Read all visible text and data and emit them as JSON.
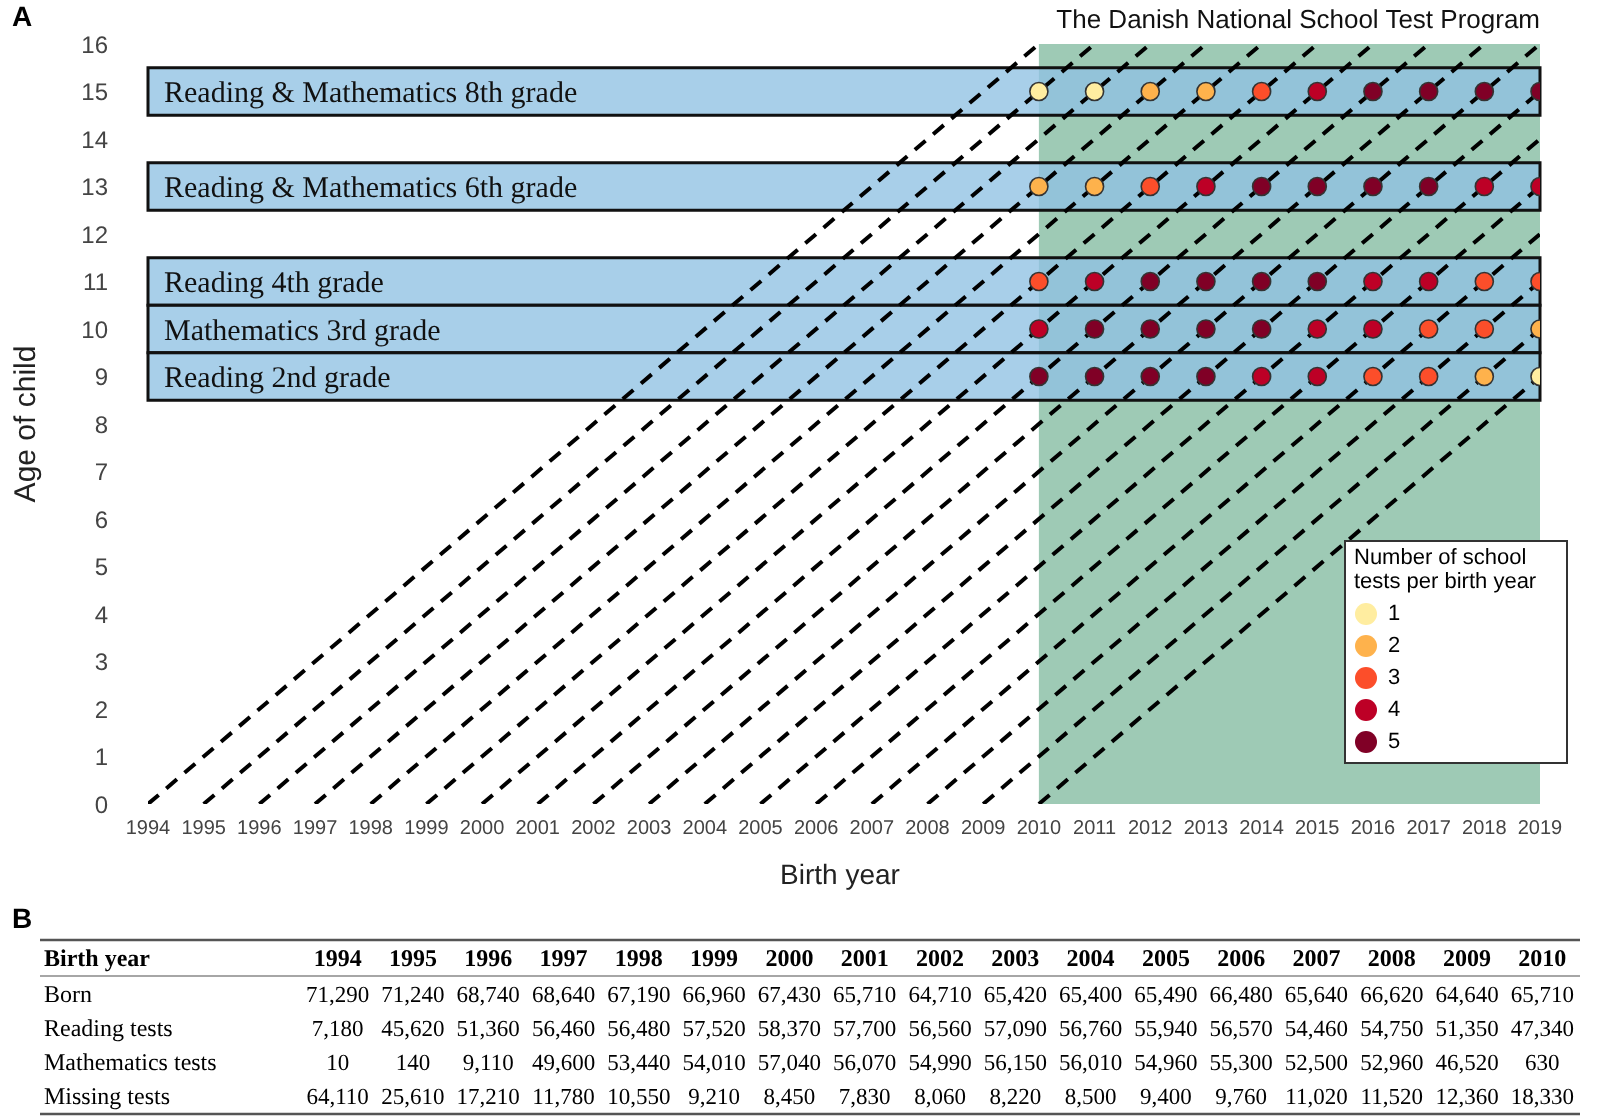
{
  "chart_data": [
    {
      "type": "scatter",
      "title": "A",
      "xlabel": "Birth year",
      "ylabel": "Age of child",
      "legend_title": "Number of school tests per birth year",
      "legend": "bottom right",
      "marker": "circle",
      "xlim": [
        1994,
        2019
      ],
      "xticks": [
        1994,
        1995,
        1996,
        1997,
        1998,
        1999,
        2000,
        2001,
        2002,
        2003,
        2004,
        2005,
        2006,
        2007,
        2008,
        2009,
        2010,
        2011,
        2012,
        2013,
        2014,
        2015,
        2016,
        2017,
        2018,
        2019
      ],
      "ylim": [
        0,
        16
      ],
      "yticks": [
        0,
        1,
        2,
        3,
        4,
        5,
        6,
        7,
        8,
        9,
        10,
        11,
        12,
        13,
        14,
        15,
        16
      ],
      "bands": [
        {
          "axis": "x",
          "from": 2010,
          "to": 2019,
          "label": "The Danish National School Test Program",
          "color": "#9ecab5"
        },
        {
          "axis": "y",
          "from": 14.5,
          "to": 15.5,
          "label": "Reading & Mathematics 8th grade",
          "color": "#8fc1e3"
        },
        {
          "axis": "y",
          "from": 12.5,
          "to": 13.5,
          "label": "Reading & Mathematics 6th grade",
          "color": "#8fc1e3"
        },
        {
          "axis": "y",
          "from": 10.5,
          "to": 11.5,
          "label": "Reading 4th grade",
          "color": "#8fc1e3"
        },
        {
          "axis": "y",
          "from": 9.5,
          "to": 10.5,
          "label": "Mathematics 3rd grade",
          "color": "#8fc1e3"
        },
        {
          "axis": "y",
          "from": 8.5,
          "to": 9.5,
          "label": "Reading 2nd grade",
          "color": "#8fc1e3"
        }
      ],
      "series": [
        {
          "type": "line",
          "color": "#000000",
          "line_style": "dashed",
          "marker": "none",
          "x": [
            1994,
            2010
          ],
          "values": [
            0,
            16
          ]
        },
        {
          "type": "line",
          "color": "#000000",
          "line_style": "dashed",
          "marker": "none",
          "x": [
            1995,
            2011
          ],
          "values": [
            0,
            16
          ]
        },
        {
          "type": "line",
          "color": "#000000",
          "line_style": "dashed",
          "marker": "none",
          "x": [
            1996,
            2012
          ],
          "values": [
            0,
            16
          ]
        },
        {
          "type": "line",
          "color": "#000000",
          "line_style": "dashed",
          "marker": "none",
          "x": [
            1997,
            2013
          ],
          "values": [
            0,
            16
          ]
        },
        {
          "type": "line",
          "color": "#000000",
          "line_style": "dashed",
          "marker": "none",
          "x": [
            1998,
            2014
          ],
          "values": [
            0,
            16
          ]
        },
        {
          "type": "line",
          "color": "#000000",
          "line_style": "dashed",
          "marker": "none",
          "x": [
            1999,
            2015
          ],
          "values": [
            0,
            16
          ]
        },
        {
          "type": "line",
          "color": "#000000",
          "line_style": "dashed",
          "marker": "none",
          "x": [
            2000,
            2016
          ],
          "values": [
            0,
            16
          ]
        },
        {
          "type": "line",
          "color": "#000000",
          "line_style": "dashed",
          "marker": "none",
          "x": [
            2001,
            2017
          ],
          "values": [
            0,
            16
          ]
        },
        {
          "type": "line",
          "color": "#000000",
          "line_style": "dashed",
          "marker": "none",
          "x": [
            2002,
            2018
          ],
          "values": [
            0,
            16
          ]
        },
        {
          "type": "line",
          "color": "#000000",
          "line_style": "dashed",
          "marker": "none",
          "x": [
            2003,
            2019
          ],
          "values": [
            0,
            16
          ]
        },
        {
          "type": "line",
          "color": "#000000",
          "line_style": "dashed",
          "marker": "none",
          "x": [
            2004,
            2019
          ],
          "values": [
            0,
            15
          ]
        },
        {
          "type": "line",
          "color": "#000000",
          "line_style": "dashed",
          "marker": "none",
          "x": [
            2005,
            2019
          ],
          "values": [
            0,
            14
          ]
        },
        {
          "type": "line",
          "color": "#000000",
          "line_style": "dashed",
          "marker": "none",
          "x": [
            2006,
            2019
          ],
          "values": [
            0,
            13
          ]
        },
        {
          "type": "line",
          "color": "#000000",
          "line_style": "dashed",
          "marker": "none",
          "x": [
            2007,
            2019
          ],
          "values": [
            0,
            12
          ]
        },
        {
          "type": "line",
          "color": "#000000",
          "line_style": "dashed",
          "marker": "none",
          "x": [
            2008,
            2019
          ],
          "values": [
            0,
            11
          ]
        },
        {
          "type": "line",
          "color": "#000000",
          "line_style": "dashed",
          "marker": "none",
          "x": [
            2009,
            2019
          ],
          "values": [
            0,
            10
          ]
        },
        {
          "type": "line",
          "color": "#000000",
          "line_style": "dashed",
          "marker": "none",
          "x": [
            2010,
            2019
          ],
          "values": [
            0,
            9
          ]
        },
        {
          "name": "1",
          "color": "#ffeda0",
          "x": [
            2010,
            2011,
            2019
          ],
          "values": [
            15,
            15,
            9
          ]
        },
        {
          "name": "2",
          "color": "#feb24c",
          "x": [
            2012,
            2013,
            2010,
            2011,
            2019,
            2018
          ],
          "values": [
            15,
            15,
            13,
            13,
            10,
            9
          ]
        },
        {
          "name": "3",
          "color": "#fc4e2a",
          "x": [
            2014,
            2012,
            2010,
            2018,
            2019,
            2017,
            2018,
            2016,
            2017
          ],
          "values": [
            15,
            13,
            11,
            11,
            11,
            10,
            10,
            9,
            9
          ]
        },
        {
          "name": "4",
          "color": "#bd0026",
          "x": [
            2015,
            2013,
            2018,
            2019,
            2011,
            2016,
            2017,
            2010,
            2015,
            2016,
            2014,
            2015
          ],
          "values": [
            15,
            13,
            13,
            13,
            11,
            11,
            11,
            10,
            10,
            10,
            9,
            9
          ]
        },
        {
          "name": "5",
          "color": "#800026",
          "x": [
            2016,
            2017,
            2018,
            2019,
            2014,
            2015,
            2016,
            2017,
            2012,
            2013,
            2014,
            2015,
            2011,
            2012,
            2013,
            2014,
            2010,
            2011,
            2012,
            2013
          ],
          "values": [
            15,
            15,
            15,
            15,
            13,
            13,
            13,
            13,
            11,
            11,
            11,
            11,
            10,
            10,
            10,
            10,
            9,
            9,
            9,
            9
          ]
        }
      ]
    },
    {
      "type": "heatmap",
      "title": "B",
      "ylabel": "Birth year",
      "categories": [
        "1994",
        "1995",
        "1996",
        "1997",
        "1998",
        "1999",
        "2000",
        "2001",
        "2002",
        "2003",
        "2004",
        "2005",
        "2006",
        "2007",
        "2008",
        "2009",
        "2010"
      ],
      "y_categories": [
        "Born",
        "Reading tests",
        "Mathematics tests",
        "Missing tests"
      ],
      "cells": [
        [
          71290,
          71240,
          68740,
          68640,
          67190,
          66960,
          67430,
          65710,
          64710,
          65420,
          65400,
          65490,
          66480,
          65640,
          66620,
          64640,
          65710
        ],
        [
          7180,
          45620,
          51360,
          56460,
          56480,
          57520,
          58370,
          57700,
          56560,
          57090,
          56760,
          55940,
          56570,
          54460,
          54750,
          51350,
          47340
        ],
        [
          10,
          140,
          9110,
          49600,
          53440,
          54010,
          57040,
          56070,
          54990,
          56150,
          56010,
          54960,
          55300,
          52500,
          52960,
          46520,
          630
        ],
        [
          64110,
          25610,
          17210,
          11780,
          10550,
          9210,
          8450,
          7830,
          8060,
          8220,
          8500,
          9400,
          9760,
          11020,
          11520,
          12360,
          18330
        ]
      ],
      "cell_labels": [
        [
          "71,290",
          "71,240",
          "68,740",
          "68,640",
          "67,190",
          "66,960",
          "67,430",
          "65,710",
          "64,710",
          "65,420",
          "65,400",
          "65,490",
          "66,480",
          "65,640",
          "66,620",
          "64,640",
          "65,710"
        ],
        [
          "7,180",
          "45,620",
          "51,360",
          "56,460",
          "56,480",
          "57,520",
          "58,370",
          "57,700",
          "56,560",
          "57,090",
          "56,760",
          "55,940",
          "56,570",
          "54,460",
          "54,750",
          "51,350",
          "47,340"
        ],
        [
          "10",
          "140",
          "9,110",
          "49,600",
          "53,440",
          "54,010",
          "57,040",
          "56,070",
          "54,990",
          "56,150",
          "56,010",
          "54,960",
          "55,300",
          "52,500",
          "52,960",
          "46,520",
          "630"
        ],
        [
          "64,110",
          "25,610",
          "17,210",
          "11,780",
          "10,550",
          "9,210",
          "8,450",
          "7,830",
          "8,060",
          "8,220",
          "8,500",
          "9,400",
          "9,760",
          "11,020",
          "11,520",
          "12,360",
          "18,330"
        ]
      ]
    }
  ]
}
